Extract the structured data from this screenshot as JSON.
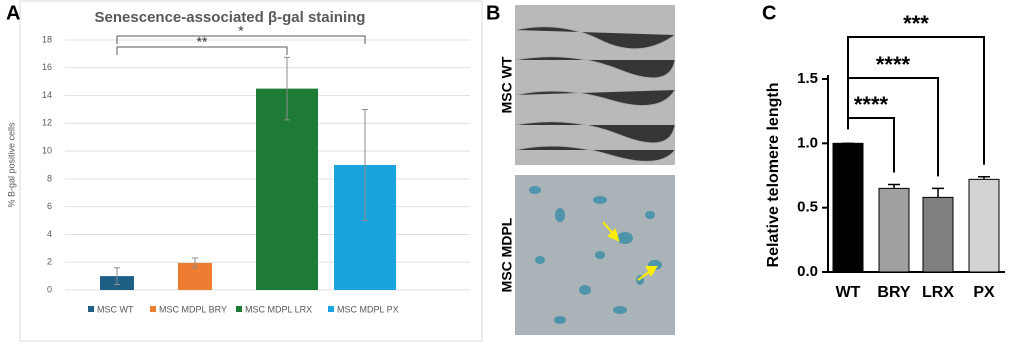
{
  "panel_labels": [
    "A",
    "B",
    "C"
  ],
  "images": {
    "labels": [
      "MSC WT",
      "MSC MDPL"
    ]
  },
  "chart_data": [
    {
      "type": "bar",
      "title": "Senescence-associated β-gal staining",
      "y_label": "% B-gal positive cells",
      "ylim": [
        0,
        18
      ],
      "yticks": [
        0,
        2,
        4,
        6,
        8,
        10,
        12,
        14,
        16,
        18
      ],
      "grid": true,
      "series": [
        {
          "name": "MSC WT",
          "color": "#1f5f86",
          "values": [
            1.0
          ],
          "errors": [
            0.6
          ]
        },
        {
          "name": "MSC MDPL BRY",
          "color": "#ed7d31",
          "values": [
            1.95
          ],
          "errors": [
            0.35
          ]
        },
        {
          "name": "MSC MDPL LRX",
          "color": "#1e7b35",
          "values": [
            14.5
          ],
          "errors": [
            2.25
          ]
        },
        {
          "name": "MSC MDPL PX",
          "color": "#1aa3dc",
          "values": [
            9.0
          ],
          "errors": [
            4.0
          ]
        }
      ],
      "annotations": [
        {
          "text": "**",
          "between": [
            0,
            2
          ]
        },
        {
          "text": "*",
          "between": [
            0,
            3
          ]
        }
      ]
    },
    {
      "type": "bar",
      "y_label": "Relative telomere length",
      "categories": [
        "WT",
        "BRY",
        "LRX",
        "PX"
      ],
      "values": [
        1.0,
        0.65,
        0.58,
        0.72
      ],
      "errors": [
        0,
        0.03,
        0.07,
        0.02
      ],
      "colors": [
        "#000000",
        "#a0a0a0",
        "#7f7f7f",
        "#d3d3d3"
      ],
      "ylim": [
        0,
        1.5
      ],
      "yticks": [
        {
          "value": 0,
          "label": "0.0"
        },
        {
          "value": 0.5,
          "label": "0.5"
        },
        {
          "value": 1,
          "label": "1.0"
        },
        {
          "value": 1.5,
          "label": "1.5"
        }
      ],
      "annotations": [
        {
          "text": "****",
          "between": [
            0,
            1
          ]
        },
        {
          "text": "****",
          "between": [
            0,
            2
          ]
        },
        {
          "text": "***",
          "between": [
            0,
            3
          ]
        }
      ]
    }
  ]
}
